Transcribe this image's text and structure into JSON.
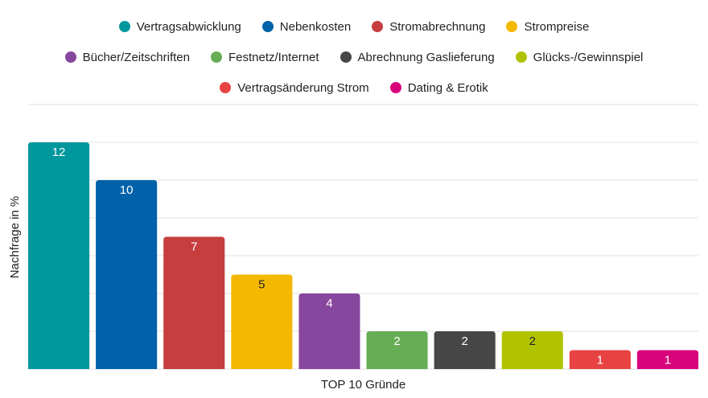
{
  "chart_data": {
    "type": "bar",
    "categories": [
      "Vertragsabwicklung",
      "Nebenkosten",
      "Stromabrechnung",
      "Strompreise",
      "Bücher/Zeitschriften",
      "Festnetz/Internet",
      "Abrechnung Gaslieferung",
      "Glücks-/Gewinnspiel",
      "Vertragsänderung Strom",
      "Dating & Erotik"
    ],
    "values": [
      12,
      10,
      7,
      5,
      4,
      2,
      2,
      2,
      1,
      1
    ],
    "colors": [
      "#00979d",
      "#0062a8",
      "#c63e3e",
      "#f5b800",
      "#87479e",
      "#66ae56",
      "#474747",
      "#b1c300",
      "#e84343",
      "#d8047b"
    ],
    "label_colors": [
      "#ffffff",
      "#ffffff",
      "#ffffff",
      "#222222",
      "#ffffff",
      "#ffffff",
      "#ffffff",
      "#222222",
      "#ffffff",
      "#ffffff"
    ],
    "xlabel": "TOP 10 Gründe",
    "ylabel": "Nachfrage in %",
    "ylim": [
      0,
      14
    ],
    "grid": true,
    "legend": "top"
  }
}
